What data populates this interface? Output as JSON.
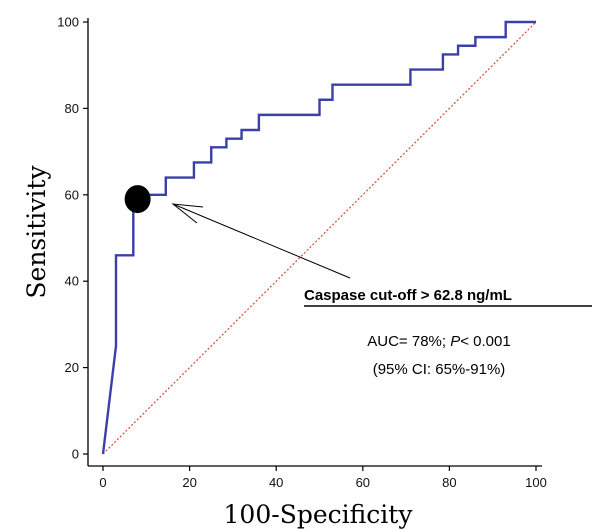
{
  "chart_data": {
    "type": "line",
    "xlabel": "100-Specificity",
    "ylabel": "Sensitivity",
    "xlim": [
      0,
      100
    ],
    "ylim": [
      0,
      100
    ],
    "xticks": [
      "0",
      "20",
      "40",
      "60",
      "80",
      "100"
    ],
    "yticks": [
      "0",
      "20",
      "40",
      "60",
      "80",
      "100"
    ],
    "grid": false,
    "series": [
      {
        "color": "#3a40a8",
        "style": "solid",
        "x": [
          0,
          3,
          3,
          7,
          7,
          14.5,
          14.5,
          21,
          21,
          25,
          25,
          28.5,
          28.5,
          32,
          32,
          36,
          36,
          50,
          50,
          53,
          53,
          71,
          71,
          78.5,
          78.5,
          82,
          82,
          86,
          86,
          93,
          93,
          100
        ],
        "y": [
          0,
          25,
          46,
          46,
          60,
          60,
          64,
          64,
          67.5,
          67.5,
          71,
          71,
          73,
          73,
          75,
          75,
          78.5,
          78.5,
          82,
          82,
          85.5,
          85.5,
          89,
          89,
          92.5,
          92.5,
          94.5,
          94.5,
          96.5,
          96.5,
          100,
          100
        ]
      },
      {
        "color": "#d9483b",
        "style": "dotted",
        "x": [
          0,
          100
        ],
        "y": [
          0,
          100
        ]
      }
    ],
    "highlight_point": {
      "x": 8,
      "y": 59,
      "color": "#000000"
    },
    "annotations": {
      "cutoff": "Caspase cut-off > 62.8 ng/mL",
      "auc_prefix": "AUC= 78%; ",
      "p_symbol": "P",
      "p_suffix": "< 0.001",
      "ci": "(95% CI: 65%-91%)"
    }
  }
}
